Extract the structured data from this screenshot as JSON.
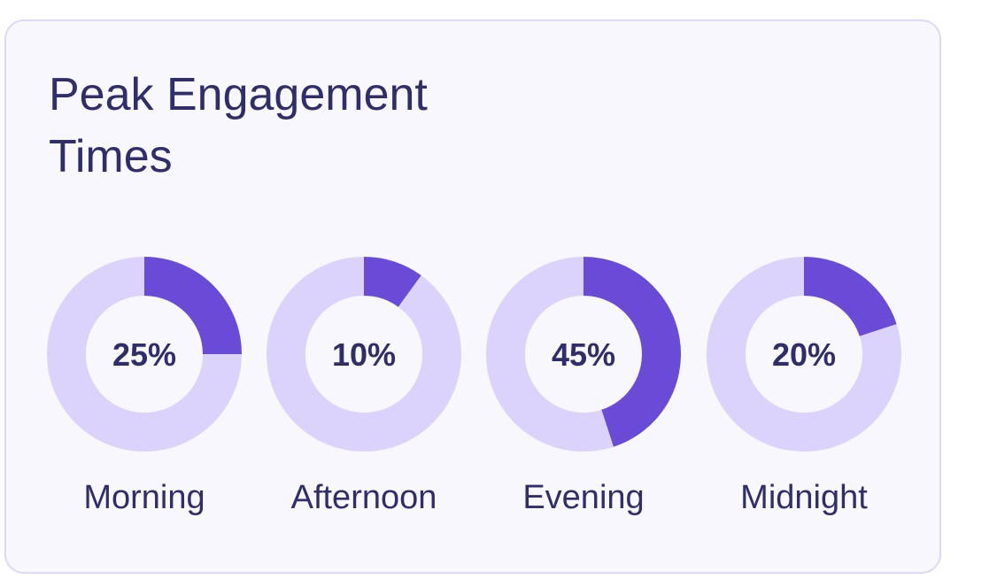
{
  "chart_data": {
    "type": "pie",
    "title": "Peak Engagement Times",
    "categories": [
      "Morning",
      "Afternoon",
      "Evening",
      "Midnight"
    ],
    "values": [
      25,
      10,
      45,
      20
    ],
    "value_labels": [
      "25%",
      "10%",
      "45%",
      "20%"
    ],
    "unit": "%",
    "style": "donut",
    "colors": {
      "filled": "#6a4bd8",
      "track": "#dcd3fc",
      "text": "#2f2e6b",
      "card_background": "#f8f7fe",
      "card_border": "#dcd8f7"
    }
  }
}
